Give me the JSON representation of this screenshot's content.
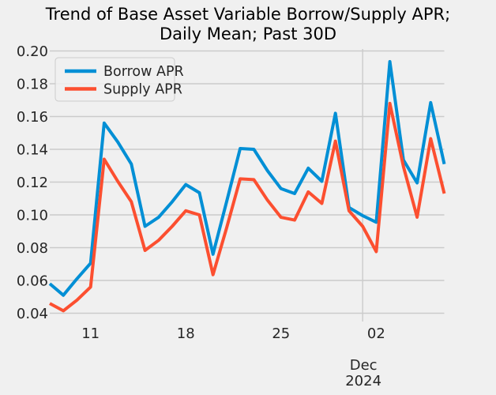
{
  "chart_data": {
    "type": "line",
    "title_line1": "Trend of Base Asset Variable Borrow/Supply APR;",
    "title_line2": "Daily Mean; Past 30D",
    "x_dates": [
      "2024-11-08",
      "2024-11-09",
      "2024-11-10",
      "2024-11-11",
      "2024-11-12",
      "2024-11-13",
      "2024-11-14",
      "2024-11-15",
      "2024-11-16",
      "2024-11-17",
      "2024-11-18",
      "2024-11-19",
      "2024-11-20",
      "2024-11-21",
      "2024-11-22",
      "2024-11-23",
      "2024-11-24",
      "2024-11-25",
      "2024-11-26",
      "2024-11-27",
      "2024-11-28",
      "2024-11-29",
      "2024-11-30",
      "2024-12-01",
      "2024-12-02",
      "2024-12-03",
      "2024-12-04",
      "2024-12-05",
      "2024-12-06",
      "2024-12-07"
    ],
    "series": [
      {
        "name": "Borrow APR",
        "color": "#008fd5",
        "values": [
          0.058,
          0.051,
          0.061,
          0.0705,
          0.156,
          0.1445,
          0.131,
          0.093,
          0.0985,
          0.108,
          0.1185,
          0.1135,
          0.076,
          0.108,
          0.1405,
          0.14,
          0.127,
          0.116,
          0.113,
          0.1285,
          0.1205,
          0.162,
          0.1045,
          0.0995,
          0.0955,
          0.1935,
          0.1335,
          0.1195,
          0.1685,
          0.131
        ]
      },
      {
        "name": "Supply APR",
        "color": "#fc4f30",
        "values": [
          0.046,
          0.0415,
          0.048,
          0.056,
          0.134,
          0.1205,
          0.108,
          0.0783,
          0.0845,
          0.093,
          0.1025,
          0.1,
          0.0635,
          0.092,
          0.122,
          0.1215,
          0.109,
          0.0985,
          0.0968,
          0.114,
          0.107,
          0.145,
          0.1025,
          0.093,
          0.0776,
          0.168,
          0.1295,
          0.0986,
          0.1465,
          0.113
        ]
      }
    ],
    "y_tick_labels": [
      "0.04",
      "0.06",
      "0.08",
      "0.10",
      "0.12",
      "0.14",
      "0.16",
      "0.18",
      "0.20"
    ],
    "y_ticks": [
      0.04,
      0.06,
      0.08,
      0.1,
      0.12,
      0.14,
      0.16,
      0.18,
      0.2
    ],
    "ylim": [
      0.0347,
      0.2012
    ],
    "x_ticks": [
      {
        "label": "11",
        "date": "2024-11-11"
      },
      {
        "label": "18",
        "date": "2024-11-18"
      },
      {
        "label": "25",
        "date": "2024-11-25"
      },
      {
        "label": "02",
        "date": "2024-12-02"
      }
    ],
    "x_offset_line1": "Dec",
    "x_offset_line2": "2024",
    "month_boundary_date": "2024-12-01",
    "legend": {
      "position": "upper left",
      "entries": [
        "Borrow APR",
        "Supply APR"
      ]
    },
    "grid": "horizontal lines at every y tick; single vertical line at month boundary",
    "background_color": "#f0f0f0",
    "grid_color": "#cbcbcb",
    "text_color": "#262626",
    "line_width": 4
  }
}
